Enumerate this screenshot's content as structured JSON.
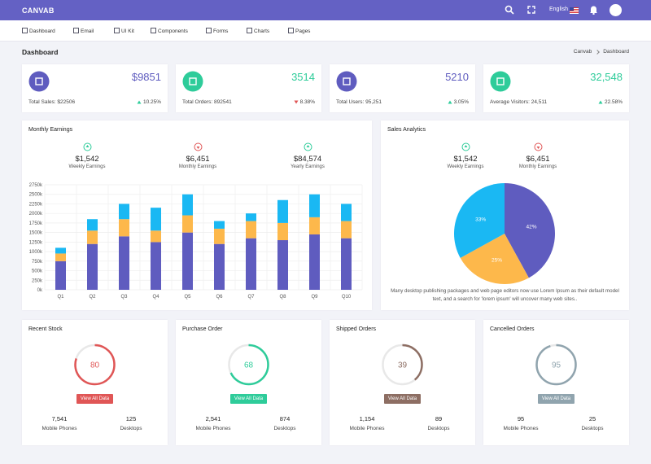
{
  "header": {
    "brand": "CANVAB",
    "language": "English"
  },
  "nav": [
    "Dashboard",
    "Email",
    "UI Kit",
    "Components",
    "Forms",
    "Charts",
    "Pages"
  ],
  "page": {
    "title": "Dashboard",
    "breadcrumb": [
      "Canvab",
      "Dashboard"
    ]
  },
  "stats": [
    {
      "value": "$9851",
      "label": "Total Sales: $22506",
      "change": "10.25%",
      "trend": "up",
      "color": "#5f5cbf"
    },
    {
      "value": "3514",
      "label": "Total Orders: 892541",
      "change": "8.38%",
      "trend": "down",
      "color": "#2ecc9a"
    },
    {
      "value": "5210",
      "label": "Total Users: 95,251",
      "change": "3.05%",
      "trend": "up",
      "color": "#5f5cbf"
    },
    {
      "value": "32,548",
      "label": "Average Visitors: 24,511",
      "change": "22.58%",
      "trend": "up",
      "color": "#2ecc9a"
    }
  ],
  "monthly_earnings": {
    "title": "Monthly Earnings",
    "summary": [
      {
        "value": "$1,542",
        "label": "Weekly Earnings",
        "trend": "up"
      },
      {
        "value": "$6,451",
        "label": "Monthly Earnings",
        "trend": "down"
      },
      {
        "value": "$84,574",
        "label": "Yearly Earnings",
        "trend": "up"
      }
    ],
    "chart_data": {
      "type": "bar",
      "stacked": true,
      "grid": true,
      "categories": [
        "Q1",
        "Q2",
        "Q3",
        "Q4",
        "Q5",
        "Q6",
        "Q7",
        "Q8",
        "Q9",
        "Q10"
      ],
      "series": [
        {
          "color": "#5f5cbf",
          "values": [
            750,
            1200,
            1400,
            1250,
            1500,
            1200,
            1350,
            1300,
            1450,
            1350
          ]
        },
        {
          "color": "#fdb84b",
          "values": [
            200,
            350,
            450,
            300,
            450,
            400,
            450,
            450,
            450,
            450
          ]
        },
        {
          "color": "#1ab8f3",
          "values": [
            150,
            300,
            400,
            600,
            550,
            200,
            200,
            600,
            600,
            450
          ]
        }
      ],
      "ylim": [
        0,
        2750
      ],
      "yticks": [
        {
          "value": 0,
          "label": "0k"
        },
        {
          "value": 250,
          "label": "250k"
        },
        {
          "value": 500,
          "label": "500k"
        },
        {
          "value": 750,
          "label": "750k"
        },
        {
          "value": 1000,
          "label": "1000k"
        },
        {
          "value": 1250,
          "label": "1250k"
        },
        {
          "value": 1500,
          "label": "1500k"
        },
        {
          "value": 1750,
          "label": "1750k"
        },
        {
          "value": 2000,
          "label": "2000k"
        },
        {
          "value": 2250,
          "label": "2250k"
        },
        {
          "value": 2500,
          "label": "2500k"
        },
        {
          "value": 2750,
          "label": "2750k"
        }
      ]
    }
  },
  "sales_analytics": {
    "title": "Sales Analytics",
    "summary": [
      {
        "value": "$1,542",
        "label": "Weekly Earnings",
        "trend": "up"
      },
      {
        "value": "$6,451",
        "label": "Monthly Earnings",
        "trend": "down"
      }
    ],
    "chart_data": {
      "type": "pie",
      "values": [
        42,
        25,
        33
      ],
      "value_labels": [
        "42%",
        "25%",
        "33%"
      ],
      "colors": [
        "#5f5cbf",
        "#fdb84b",
        "#1ab8f3"
      ]
    },
    "description": "Many desktop publishing packages and web page editors now use Lorem Ipsum as their default model text, and a search for 'lorem ipsum' will uncover many web sites.."
  },
  "orders": [
    {
      "title": "Recent Stock",
      "value": 80,
      "color": "#e05656",
      "button": "View All Data",
      "items": [
        {
          "value": "7,541",
          "label": "Mobile Phones"
        },
        {
          "value": "125",
          "label": "Desktops"
        }
      ]
    },
    {
      "title": "Purchase Order",
      "value": 68,
      "color": "#2ecc9a",
      "button": "View All Data",
      "items": [
        {
          "value": "2,541",
          "label": "Mobile Phones"
        },
        {
          "value": "874",
          "label": "Desktops"
        }
      ]
    },
    {
      "title": "Shipped Orders",
      "value": 39,
      "color": "#8d6e63",
      "button": "View All Data",
      "items": [
        {
          "value": "1,154",
          "label": "Mobile Phones"
        },
        {
          "value": "89",
          "label": "Desktops"
        }
      ]
    },
    {
      "title": "Cancelled Orders",
      "value": 95,
      "color": "#90a4ae",
      "button": "View All Data",
      "items": [
        {
          "value": "95",
          "label": "Mobile Phones"
        },
        {
          "value": "25",
          "label": "Desktops"
        }
      ]
    }
  ]
}
